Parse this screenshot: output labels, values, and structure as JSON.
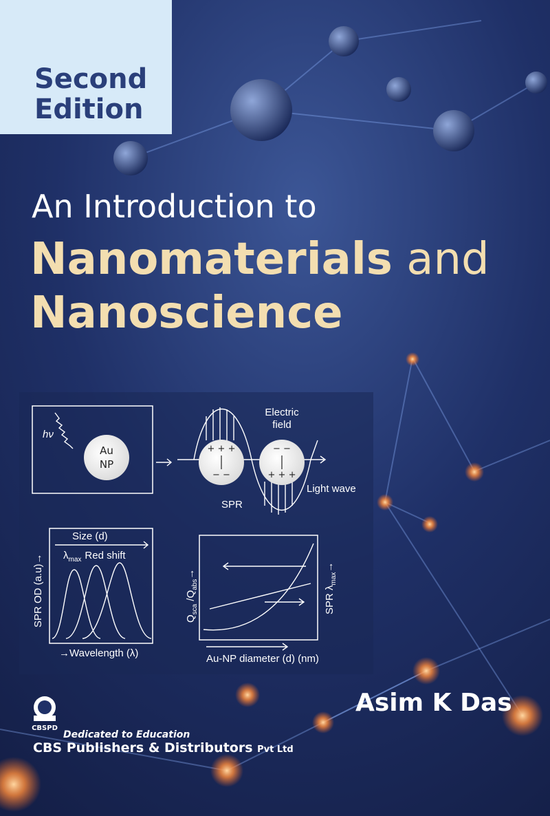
{
  "edition": {
    "line1": "Second",
    "line2": "Edition"
  },
  "title": {
    "line1": "An Introduction to",
    "line2_bold": "Nanomaterials",
    "line2_rest": "and",
    "line3": "Nanoscience"
  },
  "diagram": {
    "photon": "hν",
    "particle": [
      "Au",
      "NP"
    ],
    "field": [
      "Electric",
      "field"
    ],
    "plus_signs": "+ + +",
    "minus_signs": "− −",
    "spr": "SPR",
    "light_wave": "Light wave",
    "size": "Size (d)",
    "lambda": "λ",
    "max": "max",
    "red_shift": "Red shift",
    "y_axis_left": "SPR OD (a.u)→",
    "x_axis_left": "→Wavelength (λ)",
    "q": "Q",
    "sca": "sca",
    "slash_q": " /Q",
    "abs": "abs",
    "arrow": "→",
    "y_axis_right": "SPR λ",
    "x_axis_right": "Au-NP diameter (d) (nm)"
  },
  "author": "Asim K Das",
  "publisher": {
    "logo": "CBSPD",
    "motto": "Dedicated to Education",
    "name": "CBS Publishers & Distributors",
    "suffix": "Pvt Ltd"
  }
}
